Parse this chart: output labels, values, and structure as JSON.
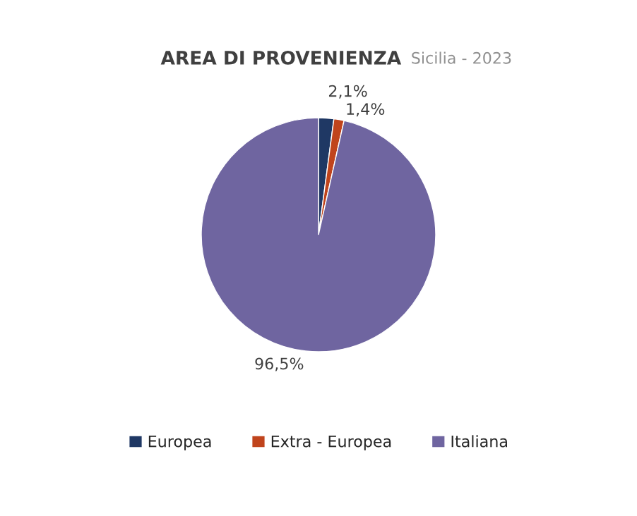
{
  "chart_data": {
    "type": "pie",
    "title": "AREA DI PROVENIENZA",
    "subtitle": "Sicilia - 2023",
    "categories": [
      "Europea",
      "Extra - Europea",
      "Italiana"
    ],
    "values": [
      2.1,
      1.4,
      96.5
    ],
    "value_labels": [
      "2,1%",
      "1,4%",
      "96,5%"
    ],
    "colors": [
      "#1f3864",
      "#c0441c",
      "#6f65a0"
    ],
    "legend": "bottom"
  }
}
